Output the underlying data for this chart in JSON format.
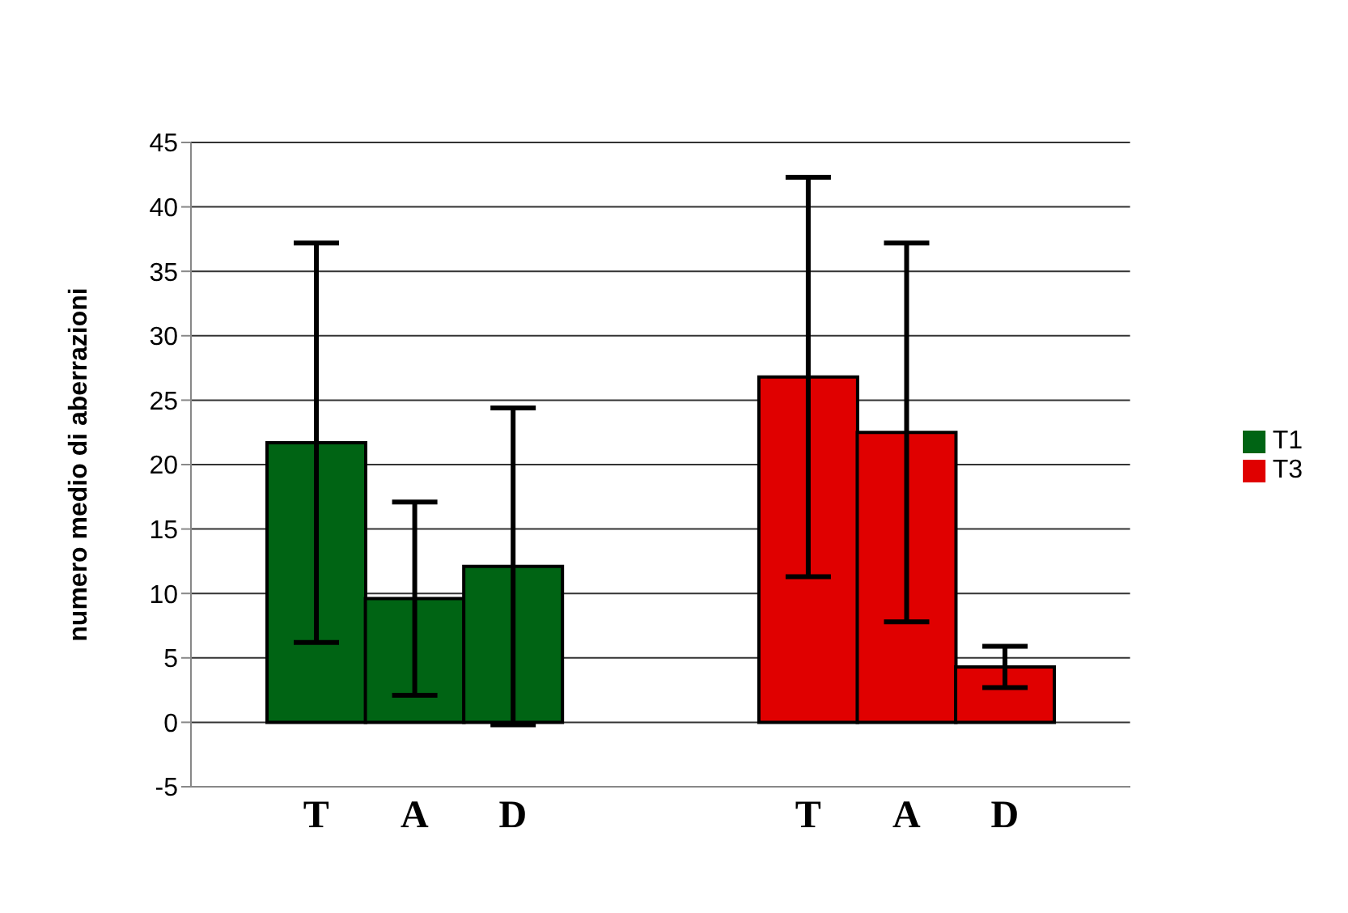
{
  "chart_data": {
    "type": "bar",
    "ylabel": "numero medio di aberrazioni",
    "categories": [
      "T",
      "A",
      "D",
      null,
      null,
      "T",
      "A",
      "D"
    ],
    "series": [
      {
        "name": "T1",
        "color": "#006414",
        "values": [
          21.7,
          9.6,
          12.1,
          null,
          null,
          null,
          null,
          null
        ],
        "errors": [
          15.5,
          7.5,
          12.3,
          null,
          null,
          null,
          null,
          null
        ]
      },
      {
        "name": "T3",
        "color": "#e00000",
        "values": [
          null,
          null,
          null,
          null,
          null,
          26.8,
          22.5,
          4.3
        ],
        "errors": [
          null,
          null,
          null,
          null,
          null,
          15.5,
          14.7,
          1.6
        ]
      }
    ],
    "ylim": [
      -5,
      45
    ],
    "yticks": [
      -5,
      0,
      5,
      10,
      15,
      20,
      25,
      30,
      35,
      40,
      45
    ],
    "grid": "y",
    "legend": "right"
  }
}
